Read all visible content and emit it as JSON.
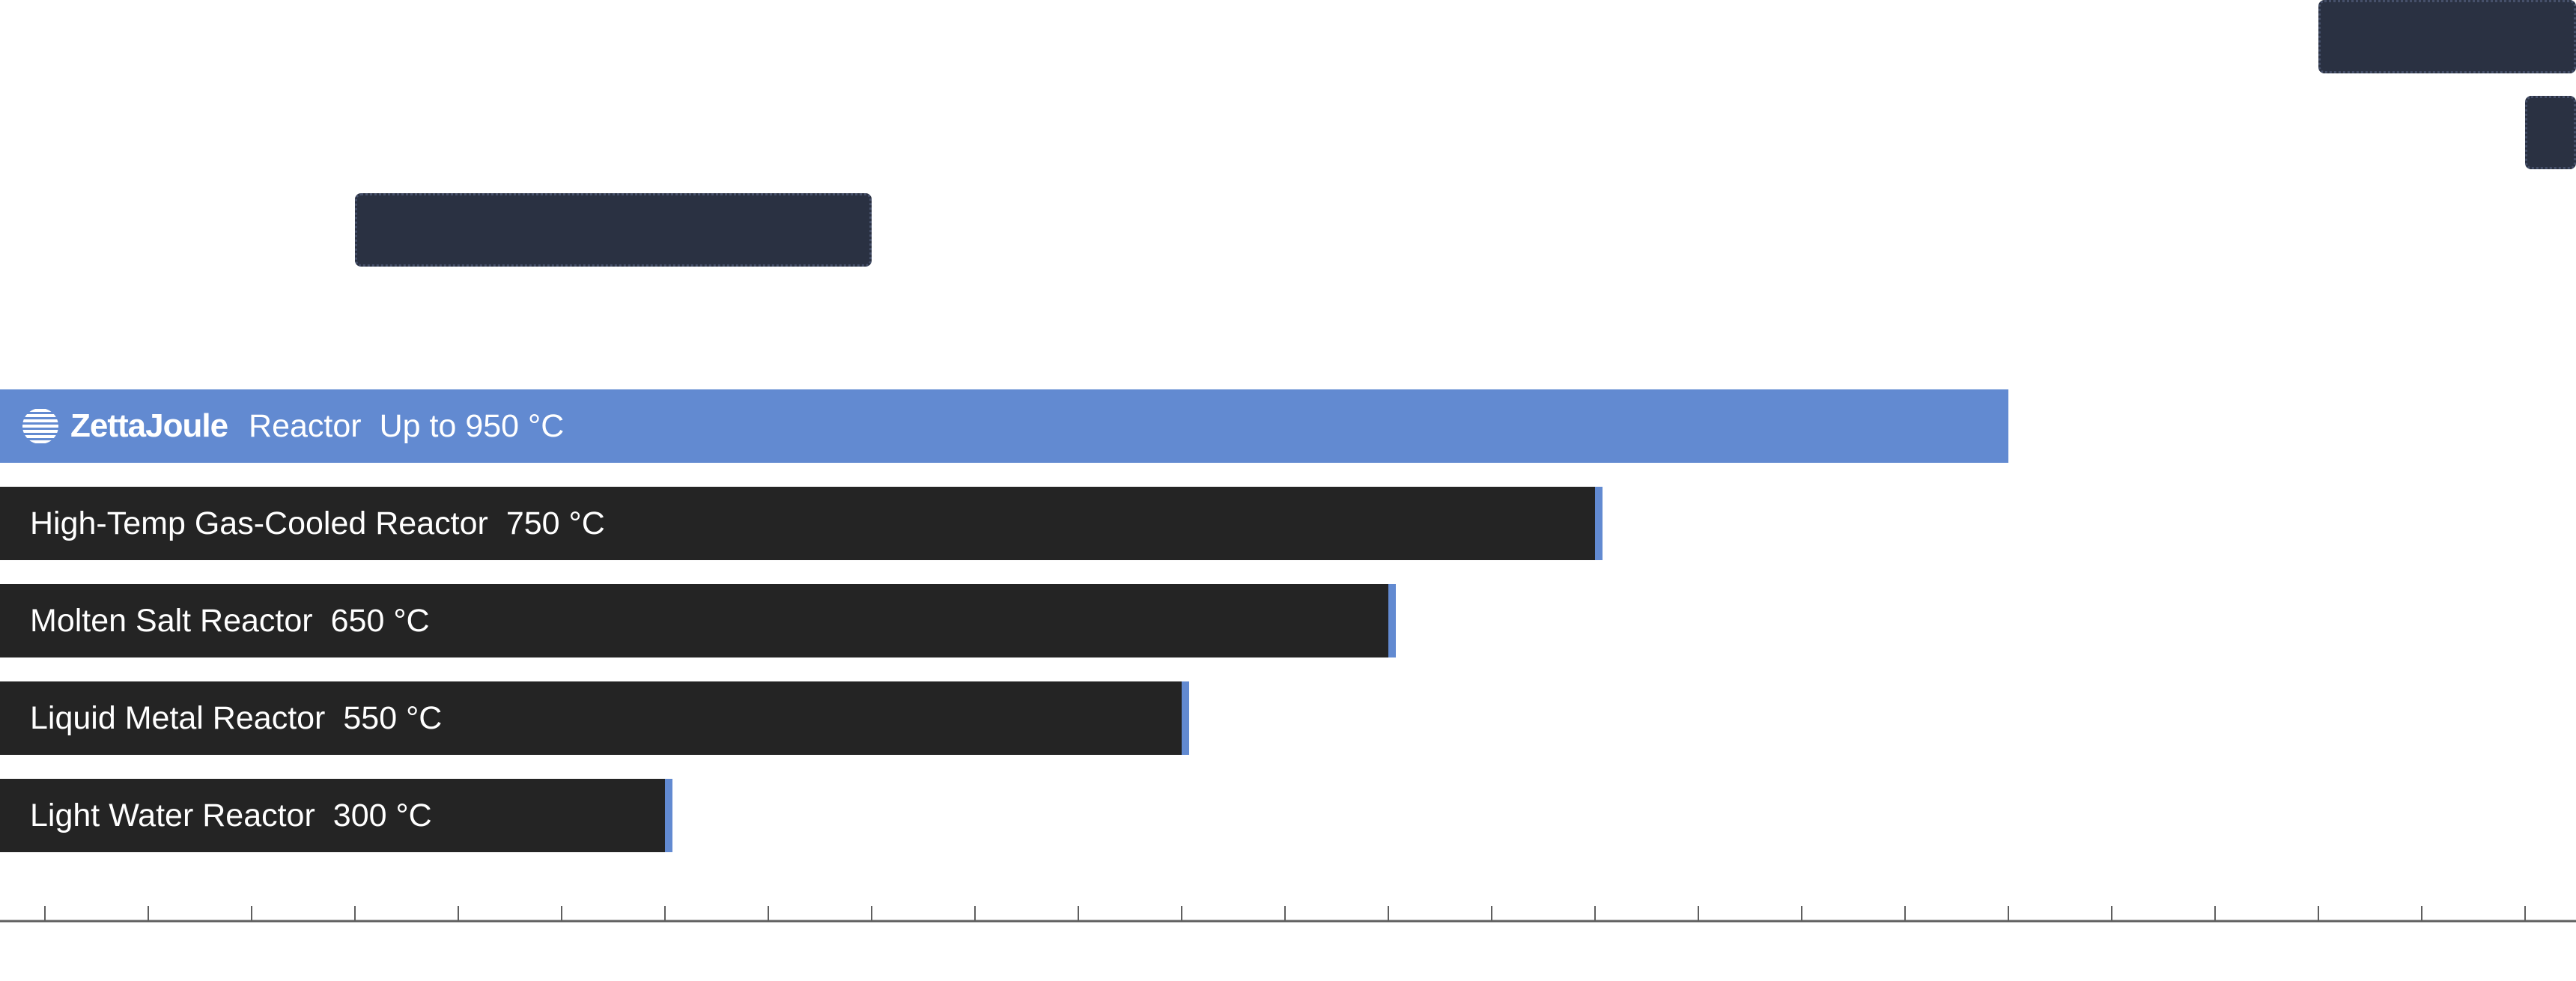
{
  "colors": {
    "accent": "#628ad1",
    "bar": "#242424",
    "range_box": "#2a3142",
    "range_box_border": "#46506a",
    "axis": "#5f5f5f",
    "text": "#ffffff"
  },
  "brand": {
    "wordmark": "ZettaJoule",
    "logo_icon": "striped-globe-icon"
  },
  "chart_data": {
    "type": "bar",
    "orientation": "horizontal",
    "xlim": [
      -20,
      1640
    ],
    "tick_step": 50,
    "title": "",
    "xlabel": "",
    "ylabel": "",
    "highlight": {
      "label": "Reactor",
      "value_text": "Up to 950 °C",
      "value": 950
    },
    "bars": [
      {
        "name": "High-Temp Gas-Cooled Reactor",
        "value_text": "750 °C",
        "value": 750
      },
      {
        "name": "Molten Salt Reactor",
        "value_text": "650 °C",
        "value": 650
      },
      {
        "name": "Liquid Metal Reactor",
        "value_text": "550 °C",
        "value": 550
      },
      {
        "name": "Light Water Reactor",
        "value_text": "300 °C",
        "value": 300
      }
    ],
    "ranges": [
      {
        "start": 150,
        "end": 400
      },
      {
        "start": 1100,
        "end": 1650
      },
      {
        "start": 1200,
        "end": 1650
      }
    ],
    "grid": false,
    "legend": "none"
  }
}
